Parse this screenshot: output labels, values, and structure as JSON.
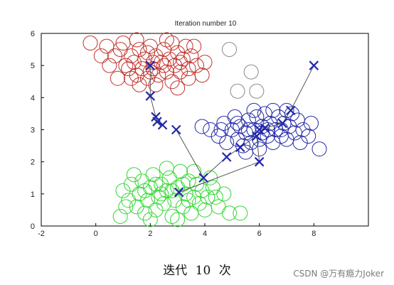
{
  "caption": "迭代 10 次",
  "watermark": "CSDN @万有瘾力Joker",
  "chart_data": {
    "type": "scatter",
    "title": "Iteration number 10",
    "xlabel": "",
    "ylabel": "",
    "xlim": [
      -2,
      10
    ],
    "ylim": [
      0,
      6
    ],
    "xticks": [
      -2,
      0,
      2,
      4,
      6,
      8
    ],
    "yticks": [
      0,
      1,
      2,
      3,
      4,
      5,
      6
    ],
    "grid": false,
    "legend": "none",
    "colors": {
      "red": "#c0302a",
      "green": "#33d633",
      "blue": "#2228a8",
      "grey": "#8a8a8a",
      "line": "#555555"
    },
    "clusters": [
      {
        "color": "red",
        "points": [
          [
            -0.2,
            5.7
          ],
          [
            0.2,
            5.3
          ],
          [
            0.5,
            5.0
          ],
          [
            0.8,
            4.6
          ],
          [
            0.9,
            5.5
          ],
          [
            1.2,
            4.9
          ],
          [
            1.0,
            5.7
          ],
          [
            1.3,
            5.3
          ],
          [
            1.5,
            4.7
          ],
          [
            1.4,
            5.1
          ],
          [
            1.6,
            5.5
          ],
          [
            1.7,
            4.9
          ],
          [
            1.8,
            5.2
          ],
          [
            1.9,
            4.6
          ],
          [
            2.0,
            5.6
          ],
          [
            2.1,
            4.9
          ],
          [
            2.2,
            5.3
          ],
          [
            2.3,
            4.7
          ],
          [
            2.4,
            5.1
          ],
          [
            2.5,
            5.5
          ],
          [
            2.6,
            4.8
          ],
          [
            2.7,
            5.2
          ],
          [
            2.8,
            4.5
          ],
          [
            2.9,
            5.0
          ],
          [
            3.0,
            5.4
          ],
          [
            3.1,
            4.8
          ],
          [
            3.2,
            5.2
          ],
          [
            3.3,
            5.6
          ],
          [
            3.4,
            4.9
          ],
          [
            3.5,
            5.3
          ],
          [
            3.7,
            5.0
          ],
          [
            3.9,
            4.7
          ],
          [
            4.0,
            5.1
          ],
          [
            1.1,
            5.0
          ],
          [
            0.7,
            5.3
          ],
          [
            1.6,
            4.4
          ],
          [
            2.2,
            4.4
          ],
          [
            2.6,
            5.8
          ],
          [
            3.0,
            4.3
          ],
          [
            3.4,
            4.6
          ],
          [
            1.5,
            5.8
          ],
          [
            2.1,
            5.1
          ],
          [
            2.5,
            5.0
          ],
          [
            1.9,
            5.4
          ],
          [
            0.4,
            5.6
          ],
          [
            3.6,
            5.6
          ],
          [
            2.8,
            5.7
          ],
          [
            1.3,
            4.6
          ],
          [
            2.0,
            4.8
          ],
          [
            3.1,
            5.1
          ]
        ]
      },
      {
        "color": "green",
        "points": [
          [
            0.9,
            0.3
          ],
          [
            1.0,
            1.1
          ],
          [
            1.2,
            0.8
          ],
          [
            1.3,
            1.3
          ],
          [
            1.5,
            0.6
          ],
          [
            1.6,
            1.0
          ],
          [
            1.7,
            1.4
          ],
          [
            1.8,
            0.4
          ],
          [
            1.9,
            0.8
          ],
          [
            2.0,
            1.2
          ],
          [
            2.1,
            1.6
          ],
          [
            2.2,
            0.5
          ],
          [
            2.3,
            0.9
          ],
          [
            2.4,
            1.3
          ],
          [
            2.5,
            0.7
          ],
          [
            2.6,
            1.1
          ],
          [
            2.7,
            1.5
          ],
          [
            2.8,
            0.3
          ],
          [
            2.9,
            0.8
          ],
          [
            3.0,
            1.2
          ],
          [
            3.1,
            1.7
          ],
          [
            3.2,
            0.6
          ],
          [
            3.3,
            1.0
          ],
          [
            3.4,
            1.4
          ],
          [
            3.5,
            0.4
          ],
          [
            3.6,
            0.9
          ],
          [
            3.7,
            1.3
          ],
          [
            3.8,
            0.7
          ],
          [
            3.9,
            1.1
          ],
          [
            4.0,
            0.5
          ],
          [
            4.1,
            0.9
          ],
          [
            4.3,
            1.2
          ],
          [
            4.5,
            0.6
          ],
          [
            4.7,
            1.0
          ],
          [
            4.9,
            0.4
          ],
          [
            5.3,
            0.4
          ],
          [
            1.4,
            1.6
          ],
          [
            2.0,
            0.2
          ],
          [
            2.6,
            1.8
          ],
          [
            3.0,
            0.2
          ],
          [
            3.6,
            1.7
          ],
          [
            4.2,
            1.5
          ],
          [
            1.1,
            0.6
          ],
          [
            2.4,
            1.0
          ],
          [
            3.2,
            1.3
          ],
          [
            2.8,
            1.1
          ],
          [
            3.4,
            0.8
          ],
          [
            1.8,
            1.1
          ],
          [
            2.2,
            1.3
          ],
          [
            4.4,
            0.9
          ]
        ]
      },
      {
        "color": "blue",
        "points": [
          [
            3.9,
            3.1
          ],
          [
            4.2,
            3.0
          ],
          [
            4.5,
            2.8
          ],
          [
            4.7,
            3.2
          ],
          [
            4.8,
            2.6
          ],
          [
            5.0,
            3.0
          ],
          [
            5.1,
            3.4
          ],
          [
            5.2,
            2.7
          ],
          [
            5.3,
            3.1
          ],
          [
            5.4,
            2.5
          ],
          [
            5.5,
            2.9
          ],
          [
            5.6,
            3.3
          ],
          [
            5.7,
            2.6
          ],
          [
            5.8,
            3.0
          ],
          [
            5.9,
            3.4
          ],
          [
            6.0,
            2.7
          ],
          [
            6.1,
            3.1
          ],
          [
            6.2,
            3.5
          ],
          [
            6.3,
            2.8
          ],
          [
            6.4,
            3.2
          ],
          [
            6.5,
            2.6
          ],
          [
            6.6,
            3.0
          ],
          [
            6.7,
            3.4
          ],
          [
            6.8,
            2.8
          ],
          [
            6.9,
            3.2
          ],
          [
            7.0,
            2.7
          ],
          [
            7.1,
            3.1
          ],
          [
            7.2,
            3.5
          ],
          [
            7.3,
            2.9
          ],
          [
            7.4,
            3.3
          ],
          [
            7.6,
            3.0
          ],
          [
            7.8,
            2.8
          ],
          [
            7.9,
            3.2
          ],
          [
            8.2,
            2.4
          ],
          [
            5.5,
            2.3
          ],
          [
            6.0,
            2.4
          ],
          [
            6.5,
            3.6
          ],
          [
            5.8,
            3.6
          ],
          [
            7.0,
            3.6
          ],
          [
            6.3,
            3.0
          ],
          [
            5.2,
            3.2
          ],
          [
            6.8,
            3.0
          ],
          [
            4.6,
            3.0
          ],
          [
            7.5,
            2.6
          ],
          [
            6.1,
            2.9
          ],
          [
            5.6,
            3.0
          ]
        ]
      },
      {
        "color": "grey",
        "points": [
          [
            4.9,
            5.5
          ],
          [
            5.7,
            4.8
          ],
          [
            5.2,
            4.2
          ],
          [
            5.9,
            4.2
          ]
        ]
      }
    ],
    "centroids": [
      {
        "name": "",
        "color": "red",
        "path": [
          [
            2.0,
            5.0
          ],
          [
            2.0,
            4.05
          ],
          [
            2.2,
            3.4
          ],
          [
            2.25,
            3.25
          ],
          [
            2.45,
            3.15
          ]
        ]
      },
      {
        "name": "",
        "color": "blue",
        "path": [
          [
            8.0,
            5.0
          ],
          [
            7.15,
            3.6
          ],
          [
            6.85,
            3.2
          ],
          [
            6.2,
            3.05
          ],
          [
            6.0,
            3.0
          ]
        ]
      },
      {
        "name": "",
        "color": "green",
        "path": [
          [
            2.95,
            3.0
          ],
          [
            3.95,
            1.5
          ],
          [
            4.8,
            2.15
          ],
          [
            5.3,
            2.45
          ],
          [
            5.9,
            2.8
          ],
          [
            6.0,
            2.0
          ],
          [
            3.05,
            1.05
          ]
        ]
      }
    ]
  }
}
